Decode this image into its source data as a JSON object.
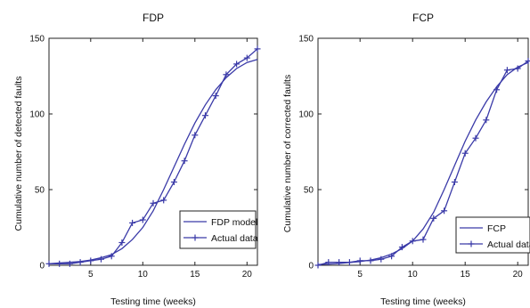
{
  "chart_data": [
    {
      "type": "line",
      "title": "FDP",
      "xlabel": "Testing time (weeks)",
      "ylabel": "Cumulative number of detected faults",
      "xlim": [
        1,
        21
      ],
      "ylim": [
        0,
        150
      ],
      "xticks": [
        5,
        10,
        15,
        20
      ],
      "yticks": [
        0,
        50,
        100,
        150
      ],
      "grid": false,
      "legend_position": "bottom-right",
      "series_color": "#3a3aa8",
      "series": [
        {
          "name": "FDP model",
          "marker": "none",
          "x": [
            1,
            2,
            3,
            4,
            5,
            6,
            7,
            8,
            9,
            10,
            11,
            12,
            13,
            14,
            15,
            16,
            17,
            18,
            19,
            20,
            21
          ],
          "y": [
            1,
            1.5,
            2,
            2.5,
            3.5,
            5,
            7,
            11,
            17,
            25,
            36,
            50,
            65,
            80,
            94,
            106,
            116,
            124,
            130,
            134,
            136
          ]
        },
        {
          "name": "Actual data",
          "marker": "plus",
          "x": [
            1,
            2,
            3,
            4,
            5,
            6,
            7,
            8,
            9,
            10,
            11,
            12,
            13,
            14,
            15,
            16,
            17,
            18,
            19,
            20,
            21
          ],
          "y": [
            1,
            1,
            1,
            2,
            3,
            4,
            6,
            15,
            28,
            30,
            41,
            43,
            55,
            69,
            86,
            99,
            112,
            126,
            133,
            137,
            143
          ]
        }
      ]
    },
    {
      "type": "line",
      "title": "FCP",
      "xlabel": "Testing time (weeks)",
      "ylabel": "Cumulative number of corrected faults",
      "xlim": [
        1,
        21
      ],
      "ylim": [
        0,
        150
      ],
      "xticks": [
        5,
        10,
        15,
        20
      ],
      "yticks": [
        0,
        50,
        100,
        150
      ],
      "grid": false,
      "legend_position": "bottom-right",
      "series_color": "#3a3aa8",
      "series": [
        {
          "name": "FCP",
          "marker": "none",
          "x": [
            1,
            2,
            3,
            4,
            5,
            6,
            7,
            8,
            9,
            10,
            11,
            12,
            13,
            14,
            15,
            16,
            17,
            18,
            19,
            20,
            21
          ],
          "y": [
            0.5,
            0.8,
            1.2,
            1.8,
            2.5,
            3.5,
            5,
            7.5,
            11,
            16,
            24,
            35,
            50,
            66,
            82,
            96,
            108,
            118,
            126,
            131,
            134
          ]
        },
        {
          "name": "Actual data",
          "marker": "plus",
          "x": [
            1,
            2,
            3,
            4,
            5,
            6,
            7,
            8,
            9,
            10,
            11,
            12,
            13,
            14,
            15,
            16,
            17,
            18,
            19,
            20,
            21
          ],
          "y": [
            0,
            2,
            2,
            2,
            3,
            3,
            4,
            6,
            12,
            16,
            17,
            31,
            36,
            55,
            74,
            84,
            96,
            116,
            129,
            130,
            135
          ]
        }
      ]
    }
  ]
}
